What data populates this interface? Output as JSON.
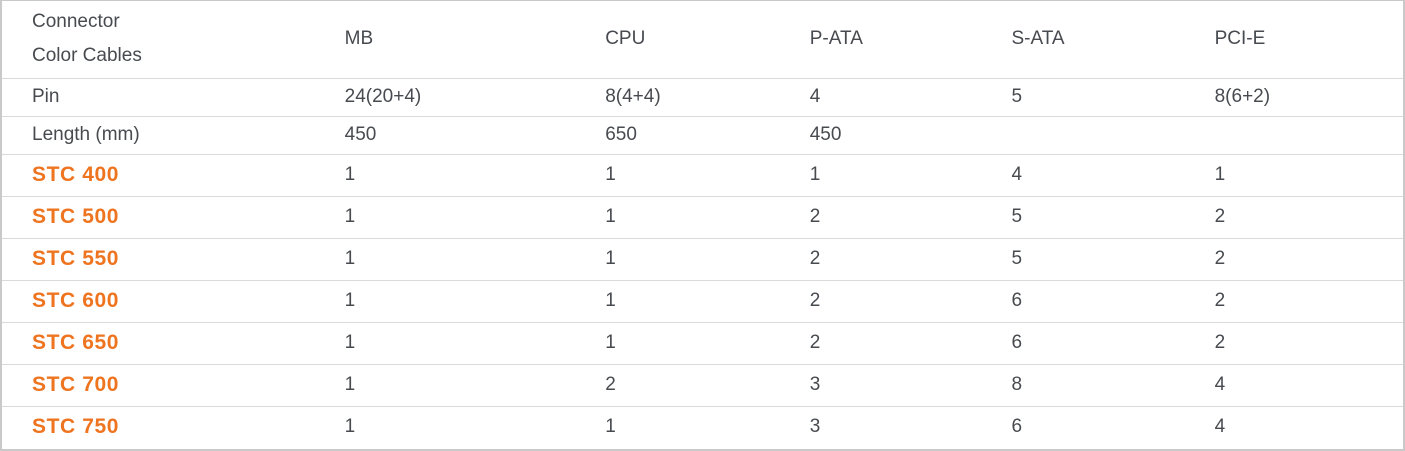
{
  "colors": {
    "accent": "#EE7420",
    "text": "#474B50",
    "border": "#C9C9C9",
    "divider": "#DADADA",
    "background": "#FFFFFF"
  },
  "table": {
    "corner_header": {
      "line1": "Connector",
      "line2": "Color Cables"
    },
    "columns": [
      "MB",
      "CPU",
      "P-ATA",
      "S-ATA",
      "PCI-E"
    ],
    "spec_rows": [
      {
        "label": "Pin",
        "values": [
          "24(20+4)",
          "8(4+4)",
          "4",
          "5",
          "8(6+2)"
        ]
      },
      {
        "label": "Length (mm)",
        "values": [
          "450",
          "650",
          "450",
          "",
          ""
        ]
      }
    ],
    "product_rows": [
      {
        "label": "STC 400",
        "values": [
          "1",
          "1",
          "1",
          "4",
          "1"
        ]
      },
      {
        "label": "STC 500",
        "values": [
          "1",
          "1",
          "2",
          "5",
          "2"
        ]
      },
      {
        "label": "STC 550",
        "values": [
          "1",
          "1",
          "2",
          "5",
          "2"
        ]
      },
      {
        "label": "STC 600",
        "values": [
          "1",
          "1",
          "2",
          "6",
          "2"
        ]
      },
      {
        "label": "STC 650",
        "values": [
          "1",
          "1",
          "2",
          "6",
          "2"
        ]
      },
      {
        "label": "STC 700",
        "values": [
          "1",
          "2",
          "3",
          "8",
          "4"
        ]
      },
      {
        "label": "STC 750",
        "values": [
          "1",
          "1",
          "3",
          "6",
          "4"
        ]
      }
    ]
  }
}
